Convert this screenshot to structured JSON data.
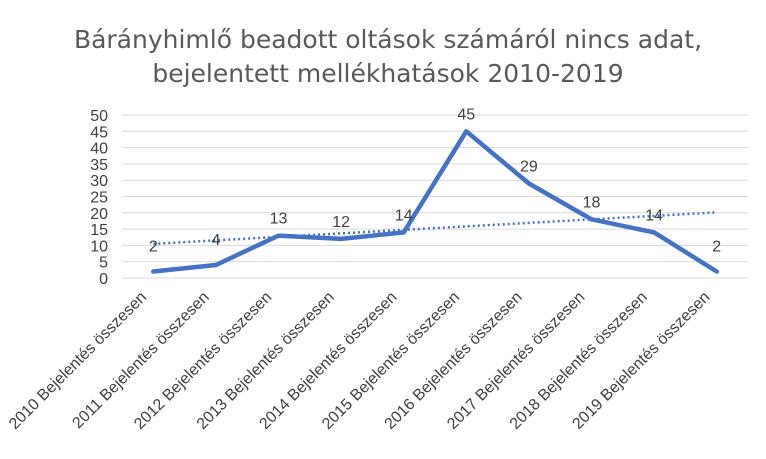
{
  "chart_data": {
    "type": "line",
    "title_lines": [
      "Bárányhimlő beadott oltások számáról nincs adat,",
      "bejelentett mellékhatások 2010-2019"
    ],
    "categories": [
      "2010 Bejelentés összesen",
      "2011 Bejelentés összesen",
      "2012 Bejelentés összesen",
      "2013 Bejelentés összesen",
      "2014 Bejelentés összesen",
      "2015 Bejelentés összesen",
      "2016 Bejelentés összesen",
      "2017 Bejelentés összesen",
      "2018 Bejelentés összesen",
      "2019 Bejelentés összesen"
    ],
    "series": [
      {
        "values": [
          2,
          4,
          13,
          12,
          14,
          45,
          29,
          18,
          14,
          2
        ],
        "color": "#4472c4"
      }
    ],
    "trendline": {
      "type": "linear",
      "style": "dotted",
      "color": "#4472c4"
    },
    "data_labels": [
      "2",
      "4",
      "13",
      "12",
      "14",
      "45",
      "29",
      "18",
      "14",
      "2"
    ],
    "y_ticks": [
      "0",
      "5",
      "10",
      "15",
      "20",
      "25",
      "30",
      "35",
      "40",
      "45",
      "50"
    ],
    "ylim": [
      0,
      50
    ],
    "grid": true,
    "legend": "none"
  }
}
